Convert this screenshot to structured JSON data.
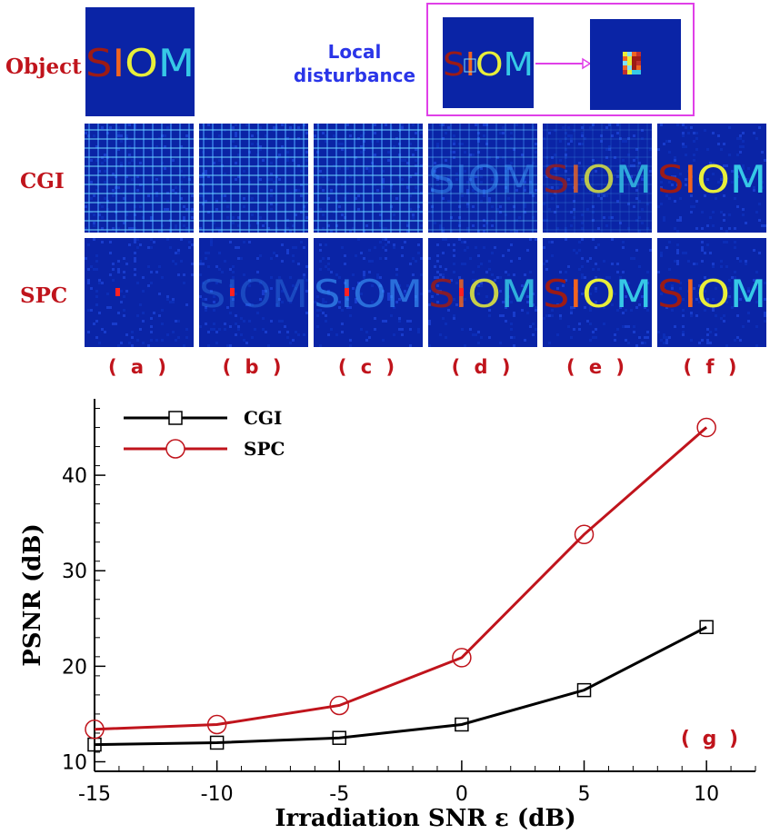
{
  "row_labels": {
    "object": "Object",
    "cgi": "CGI",
    "spc": "SPC"
  },
  "local_disturbance": {
    "line1": "Local",
    "line2": "disturbance"
  },
  "object_text": "SIOM",
  "panel_labels": [
    "( a )",
    "( b )",
    "( c )",
    "( d )",
    "( e )",
    "( f )"
  ],
  "colors": {
    "background": "#0a24a6",
    "letter_s": "#9c1b16",
    "letter_i": "#f06420",
    "letter_o": "#e8ee3a",
    "letter_m": "#36c8e6",
    "frame": "#e040e8",
    "cgi_line": "#000000",
    "spc_line": "#c0141c"
  },
  "chart_data": {
    "type": "line",
    "x": [
      -15,
      -10,
      -5,
      0,
      5,
      10
    ],
    "series": [
      {
        "name": "CGI",
        "values": [
          11.8,
          12.0,
          12.5,
          13.9,
          17.5,
          24.1
        ],
        "marker": "square",
        "color": "#000000"
      },
      {
        "name": "SPC",
        "values": [
          13.4,
          13.9,
          15.9,
          20.9,
          33.8,
          45.0
        ],
        "marker": "circle",
        "color": "#c0141c"
      }
    ],
    "xlabel": "Irradiation SNR ε (dB)",
    "ylabel": "PSNR (dB)",
    "xlim": [
      -15,
      12
    ],
    "ylim": [
      9,
      48
    ],
    "xticks": [
      -15,
      -10,
      -5,
      0,
      5,
      10
    ],
    "yticks": [
      10,
      20,
      30,
      40
    ],
    "legend_position": "top-left",
    "annotation": "( g )"
  }
}
